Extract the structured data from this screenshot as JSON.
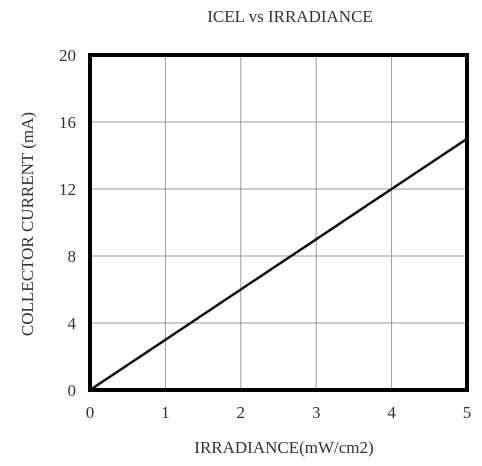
{
  "chart_data": {
    "type": "line",
    "title": "ICEL vs IRRADIANCE",
    "xlabel": "IRRADIANCE(mW/cm2)",
    "ylabel": "COLLECTOR CURRENT (mA)",
    "xlim": [
      0,
      5
    ],
    "ylim": [
      0,
      20
    ],
    "xticks": [
      "0",
      "1",
      "2",
      "3",
      "4",
      "5"
    ],
    "yticks": [
      "0",
      "4",
      "8",
      "12",
      "16",
      "20"
    ],
    "grid": true,
    "series": [
      {
        "x": [
          0,
          1,
          2,
          3,
          4,
          5
        ],
        "y": [
          0,
          3,
          6,
          9,
          12,
          15
        ]
      }
    ],
    "colors": {
      "line": "#111111",
      "frame": "#000000",
      "grid": "#9a9a9a",
      "text": "#333333"
    }
  }
}
